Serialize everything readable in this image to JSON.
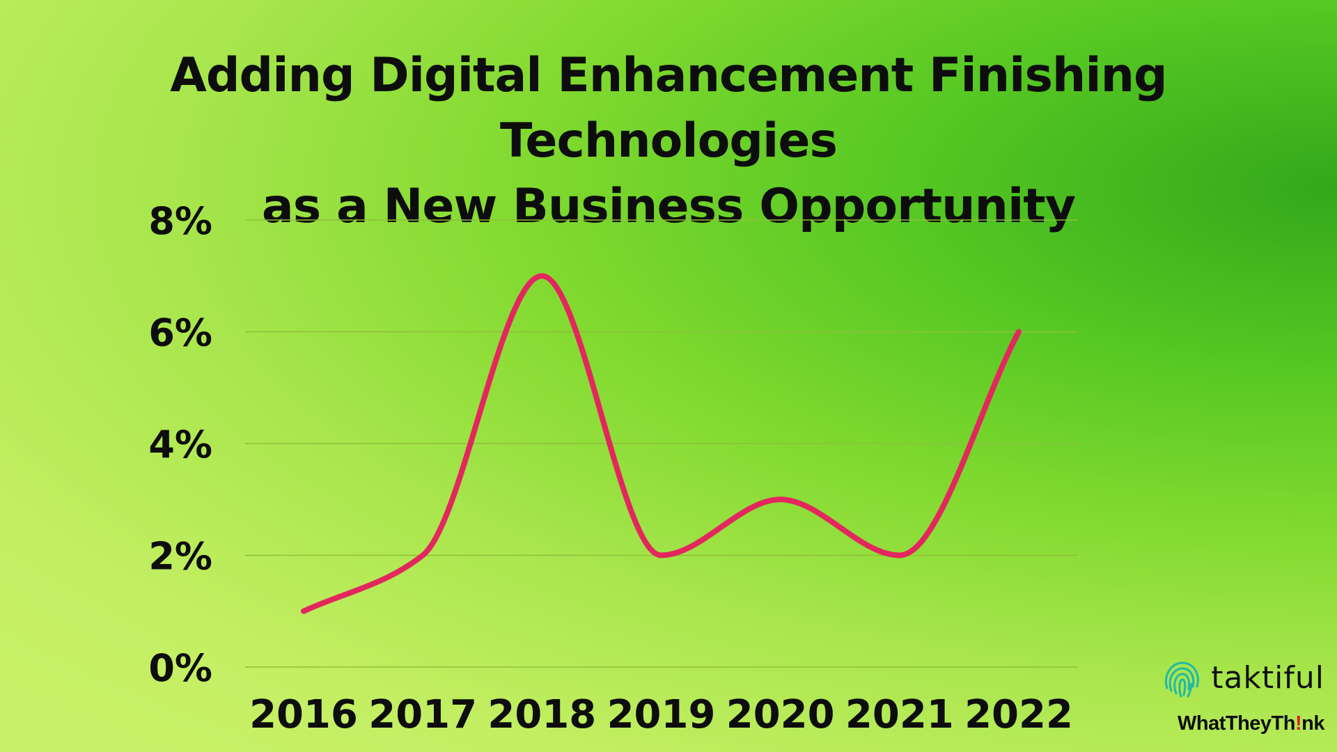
{
  "chart_data": {
    "type": "line",
    "title_lines": [
      "Adding Digital Enhancement Finishing Technologies",
      "as a New Business Opportunity"
    ],
    "categories": [
      "2016",
      "2017",
      "2018",
      "2019",
      "2020",
      "2021",
      "2022"
    ],
    "series": [
      {
        "values": [
          1,
          2,
          7,
          2,
          3,
          2,
          6
        ]
      }
    ],
    "yticks": [
      "0%",
      "2%",
      "4%",
      "6%",
      "8%"
    ],
    "ylim": [
      0,
      8
    ],
    "grid": true,
    "smooth": true,
    "line_color": "#e3275e",
    "grid_color": "#8fbf3a"
  },
  "logos": {
    "brand": "taktiful",
    "partner_prefix": "WhatTheyTh",
    "partner_mark": "!",
    "partner_suffix": "nk",
    "brand_color": "#21b8a8",
    "mark_color": "#e02020"
  }
}
